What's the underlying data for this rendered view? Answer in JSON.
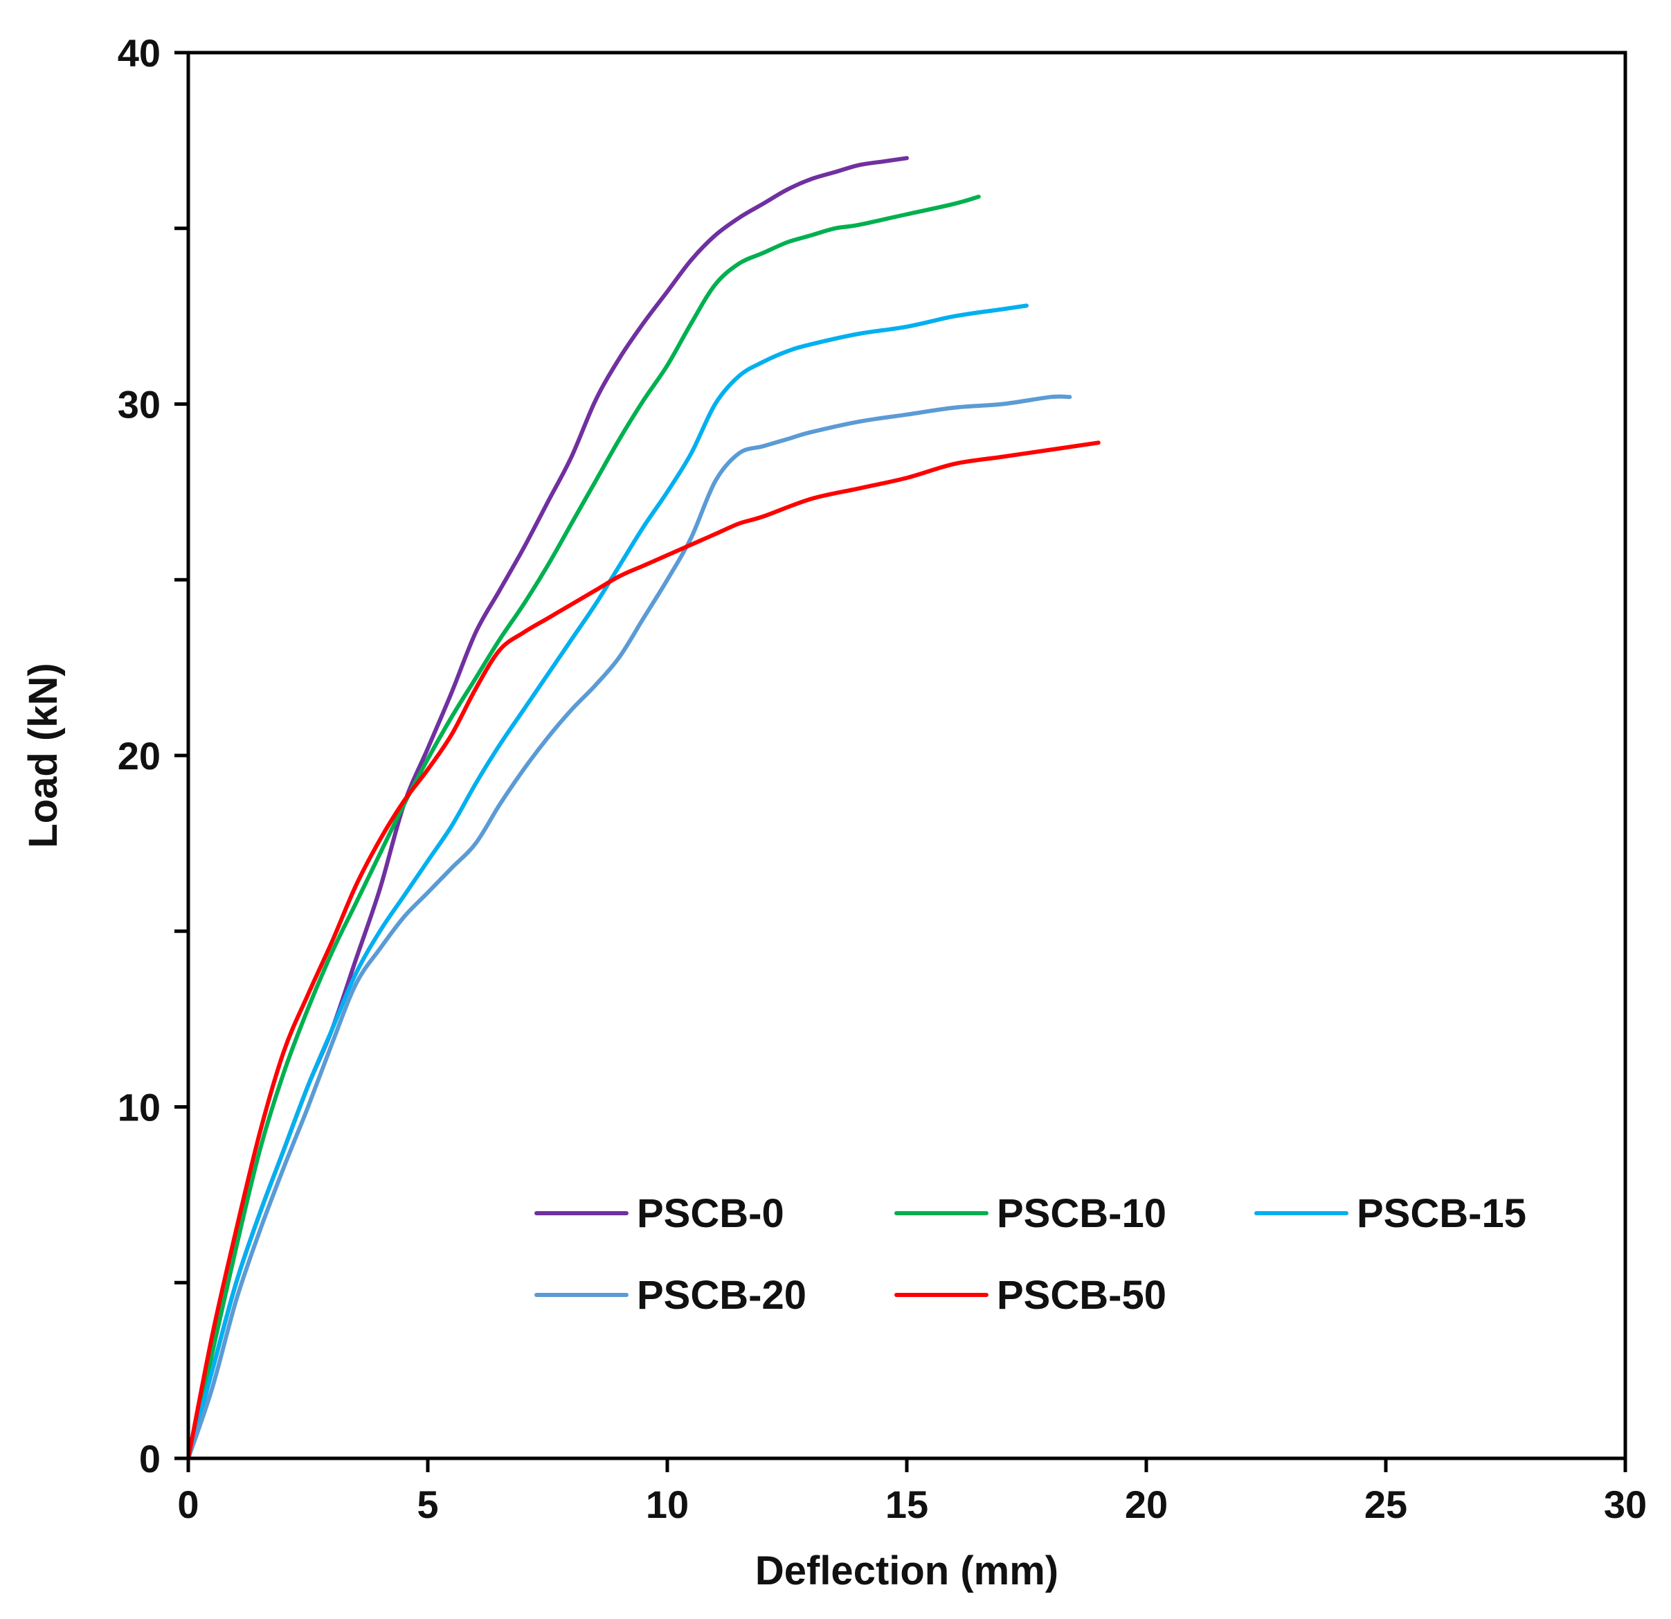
{
  "chart_data": {
    "type": "line",
    "title": "",
    "xlabel": "Deflection (mm)",
    "ylabel": "Load (kN)",
    "xlim": [
      0,
      30
    ],
    "ylim": [
      0,
      40
    ],
    "x_ticks": [
      0,
      5,
      10,
      15,
      20,
      25,
      30
    ],
    "y_ticks": [
      0,
      10,
      20,
      30,
      40
    ],
    "x_tick_labels": [
      "0",
      "5",
      "10",
      "15",
      "20",
      "25",
      "30"
    ],
    "y_tick_labels": [
      "0",
      "10",
      "20",
      "30",
      "40"
    ],
    "grid": false,
    "legend_position": "bottom-right",
    "series": [
      {
        "name": "PSCB-0",
        "color": "#7030A0",
        "points": [
          [
            0,
            0
          ],
          [
            0.5,
            2.5
          ],
          [
            1.0,
            5.0
          ],
          [
            1.5,
            7.0
          ],
          [
            2.0,
            8.8
          ],
          [
            2.5,
            10.6
          ],
          [
            3.0,
            12.2
          ],
          [
            3.5,
            14.2
          ],
          [
            4.0,
            16.2
          ],
          [
            4.5,
            18.6
          ],
          [
            5.0,
            20.2
          ],
          [
            5.5,
            21.8
          ],
          [
            6.0,
            23.5
          ],
          [
            6.5,
            24.7
          ],
          [
            7.0,
            25.9
          ],
          [
            7.5,
            27.2
          ],
          [
            8.0,
            28.5
          ],
          [
            8.5,
            30.1
          ],
          [
            9.0,
            31.3
          ],
          [
            9.5,
            32.3
          ],
          [
            10.0,
            33.2
          ],
          [
            10.5,
            34.1
          ],
          [
            11.0,
            34.8
          ],
          [
            11.5,
            35.3
          ],
          [
            12.0,
            35.7
          ],
          [
            12.5,
            36.1
          ],
          [
            13.0,
            36.4
          ],
          [
            13.5,
            36.6
          ],
          [
            14.0,
            36.8
          ],
          [
            14.5,
            36.9
          ],
          [
            15.0,
            37.0
          ]
        ]
      },
      {
        "name": "PSCB-10",
        "color": "#00B050",
        "points": [
          [
            0,
            0
          ],
          [
            0.5,
            3.0
          ],
          [
            1.0,
            6.0
          ],
          [
            1.5,
            8.8
          ],
          [
            2.0,
            11.0
          ],
          [
            2.5,
            12.8
          ],
          [
            3.0,
            14.4
          ],
          [
            3.5,
            15.8
          ],
          [
            4.0,
            17.2
          ],
          [
            4.5,
            18.6
          ],
          [
            5.0,
            19.9
          ],
          [
            5.5,
            21.1
          ],
          [
            6.0,
            22.2
          ],
          [
            6.5,
            23.3
          ],
          [
            7.0,
            24.3
          ],
          [
            7.5,
            25.4
          ],
          [
            8.0,
            26.6
          ],
          [
            8.5,
            27.8
          ],
          [
            9.0,
            29.0
          ],
          [
            9.5,
            30.1
          ],
          [
            10.0,
            31.1
          ],
          [
            10.5,
            32.3
          ],
          [
            11.0,
            33.4
          ],
          [
            11.5,
            34.0
          ],
          [
            12.0,
            34.3
          ],
          [
            12.5,
            34.6
          ],
          [
            13.0,
            34.8
          ],
          [
            13.5,
            35.0
          ],
          [
            14.0,
            35.1
          ],
          [
            15.0,
            35.4
          ],
          [
            16.0,
            35.7
          ],
          [
            16.5,
            35.9
          ]
        ]
      },
      {
        "name": "PSCB-15",
        "color": "#00B0F0",
        "points": [
          [
            0,
            0
          ],
          [
            0.5,
            2.5
          ],
          [
            1.0,
            5.0
          ],
          [
            1.5,
            7.0
          ],
          [
            2.0,
            8.8
          ],
          [
            2.5,
            10.6
          ],
          [
            3.0,
            12.2
          ],
          [
            3.5,
            13.8
          ],
          [
            4.0,
            15.0
          ],
          [
            4.5,
            16.0
          ],
          [
            5.0,
            17.0
          ],
          [
            5.5,
            18.0
          ],
          [
            6.0,
            19.2
          ],
          [
            6.5,
            20.3
          ],
          [
            7.0,
            21.3
          ],
          [
            7.5,
            22.3
          ],
          [
            8.0,
            23.3
          ],
          [
            8.5,
            24.3
          ],
          [
            9.0,
            25.4
          ],
          [
            9.5,
            26.5
          ],
          [
            10.0,
            27.5
          ],
          [
            10.5,
            28.6
          ],
          [
            11.0,
            30.0
          ],
          [
            11.5,
            30.8
          ],
          [
            12.0,
            31.2
          ],
          [
            12.5,
            31.5
          ],
          [
            13.0,
            31.7
          ],
          [
            14.0,
            32.0
          ],
          [
            15.0,
            32.2
          ],
          [
            16.0,
            32.5
          ],
          [
            17.0,
            32.7
          ],
          [
            17.5,
            32.8
          ]
        ]
      },
      {
        "name": "PSCB-20",
        "color": "#5B9BD5",
        "points": [
          [
            0,
            0
          ],
          [
            0.5,
            2.0
          ],
          [
            1.0,
            4.5
          ],
          [
            1.5,
            6.5
          ],
          [
            2.0,
            8.3
          ],
          [
            2.5,
            10.0
          ],
          [
            3.0,
            11.8
          ],
          [
            3.5,
            13.5
          ],
          [
            4.0,
            14.5
          ],
          [
            4.5,
            15.4
          ],
          [
            5.0,
            16.1
          ],
          [
            5.5,
            16.8
          ],
          [
            6.0,
            17.5
          ],
          [
            6.5,
            18.6
          ],
          [
            7.0,
            19.6
          ],
          [
            7.5,
            20.5
          ],
          [
            8.0,
            21.3
          ],
          [
            8.5,
            22.0
          ],
          [
            9.0,
            22.8
          ],
          [
            9.5,
            23.9
          ],
          [
            10.0,
            25.0
          ],
          [
            10.5,
            26.2
          ],
          [
            11.0,
            27.8
          ],
          [
            11.5,
            28.6
          ],
          [
            12.0,
            28.8
          ],
          [
            12.5,
            29.0
          ],
          [
            13.0,
            29.2
          ],
          [
            14.0,
            29.5
          ],
          [
            15.0,
            29.7
          ],
          [
            16.0,
            29.9
          ],
          [
            17.0,
            30.0
          ],
          [
            18.0,
            30.2
          ],
          [
            18.4,
            30.2
          ]
        ]
      },
      {
        "name": "PSCB-50",
        "color": "#FF0000",
        "points": [
          [
            0,
            0
          ],
          [
            0.5,
            3.5
          ],
          [
            1.0,
            6.5
          ],
          [
            1.5,
            9.3
          ],
          [
            2.0,
            11.6
          ],
          [
            2.5,
            13.2
          ],
          [
            3.0,
            14.7
          ],
          [
            3.5,
            16.3
          ],
          [
            4.0,
            17.6
          ],
          [
            4.5,
            18.7
          ],
          [
            5.0,
            19.6
          ],
          [
            5.5,
            20.6
          ],
          [
            6.0,
            21.9
          ],
          [
            6.5,
            23.0
          ],
          [
            7.0,
            23.5
          ],
          [
            7.5,
            23.9
          ],
          [
            8.0,
            24.3
          ],
          [
            8.5,
            24.7
          ],
          [
            9.0,
            25.1
          ],
          [
            9.5,
            25.4
          ],
          [
            10.0,
            25.7
          ],
          [
            10.5,
            26.0
          ],
          [
            11.0,
            26.3
          ],
          [
            11.5,
            26.6
          ],
          [
            12.0,
            26.8
          ],
          [
            13.0,
            27.3
          ],
          [
            14.0,
            27.6
          ],
          [
            15.0,
            27.9
          ],
          [
            16.0,
            28.3
          ],
          [
            17.0,
            28.5
          ],
          [
            18.0,
            28.7
          ],
          [
            19.0,
            28.9
          ]
        ]
      }
    ]
  }
}
